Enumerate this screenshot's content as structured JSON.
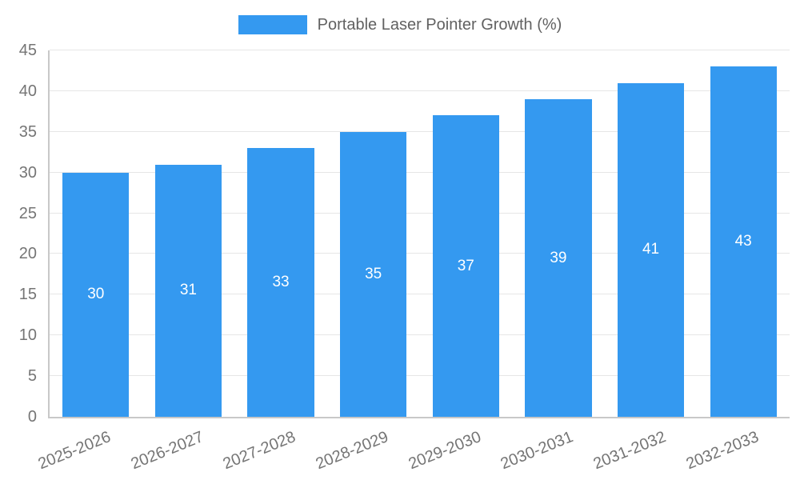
{
  "colors": {
    "bar": "#3499f0",
    "grid": "#e6e6e6",
    "axis": "#c8c8c8",
    "text": "#757575",
    "title": "#616161",
    "bar_label": "#ffffff"
  },
  "legend": {
    "label": "Portable Laser Pointer Growth (%)"
  },
  "chart_data": {
    "type": "bar",
    "title": "Portable Laser Pointer Growth (%)",
    "categories": [
      "2025-2026",
      "2026-2027",
      "2027-2028",
      "2028-2029",
      "2029-2030",
      "2030-2031",
      "2031-2032",
      "2032-2033"
    ],
    "values": [
      30,
      31,
      33,
      35,
      37,
      39,
      41,
      43
    ],
    "xlabel": "",
    "ylabel": "",
    "ylim": [
      0,
      45
    ],
    "yticks": [
      0,
      5,
      10,
      15,
      20,
      25,
      30,
      35,
      40,
      45
    ],
    "grid": "horizontal",
    "legend_position": "top",
    "bar_label_position": "inside-middle"
  }
}
